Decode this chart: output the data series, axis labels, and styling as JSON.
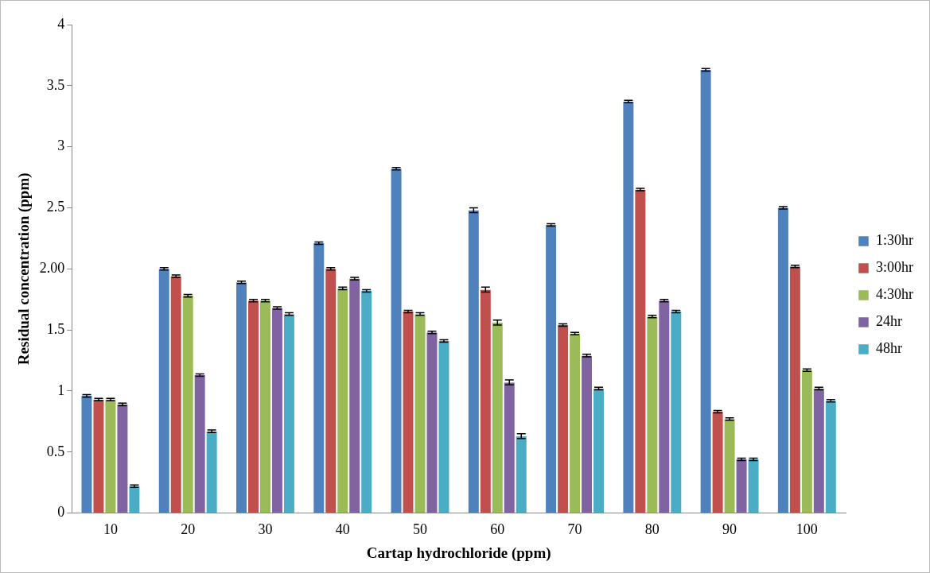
{
  "chart_data": {
    "type": "bar",
    "xlabel": "Cartap hydrochloride (ppm)",
    "ylabel": "Residual concentration (ppm)",
    "categories": [
      "10",
      "20",
      "30",
      "40",
      "50",
      "60",
      "70",
      "80",
      "90",
      "100"
    ],
    "series": [
      {
        "name": "1:30hr",
        "color": "#4f81bd",
        "values": [
          0.96,
          2.0,
          1.89,
          2.21,
          2.82,
          2.48,
          2.36,
          3.37,
          3.63,
          2.5
        ],
        "errors": [
          0.01,
          0.01,
          0.01,
          0.01,
          0.01,
          0.02,
          0.01,
          0.01,
          0.01,
          0.01
        ]
      },
      {
        "name": "3:00hr",
        "color": "#c0504d",
        "values": [
          0.93,
          1.94,
          1.74,
          2.0,
          1.65,
          1.83,
          1.54,
          2.65,
          0.83,
          2.02
        ],
        "errors": [
          0.01,
          0.01,
          0.01,
          0.01,
          0.01,
          0.02,
          0.01,
          0.01,
          0.01,
          0.01
        ]
      },
      {
        "name": "4:30hr",
        "color": "#9bbb59",
        "values": [
          0.93,
          1.78,
          1.74,
          1.84,
          1.63,
          1.56,
          1.47,
          1.61,
          0.77,
          1.17
        ],
        "errors": [
          0.01,
          0.01,
          0.01,
          0.01,
          0.01,
          0.02,
          0.01,
          0.01,
          0.01,
          0.01
        ]
      },
      {
        "name": "24hr",
        "color": "#8064a2",
        "values": [
          0.89,
          1.13,
          1.68,
          1.92,
          1.48,
          1.07,
          1.29,
          1.74,
          0.44,
          1.02
        ],
        "errors": [
          0.01,
          0.01,
          0.01,
          0.01,
          0.01,
          0.02,
          0.01,
          0.01,
          0.01,
          0.01
        ]
      },
      {
        "name": "48hr",
        "color": "#4bacc6",
        "values": [
          0.22,
          0.67,
          1.63,
          1.82,
          1.41,
          0.63,
          1.02,
          1.65,
          0.44,
          0.92
        ],
        "errors": [
          0.01,
          0.01,
          0.01,
          0.01,
          0.01,
          0.02,
          0.01,
          0.01,
          0.01,
          0.01
        ]
      }
    ],
    "ylim": [
      0,
      4
    ],
    "yticks": [
      0,
      0.5,
      1,
      1.5,
      {
        "value": 2,
        "label": "2.00"
      },
      2.5,
      3,
      3.5,
      4
    ],
    "grid": false,
    "legend": "right"
  }
}
